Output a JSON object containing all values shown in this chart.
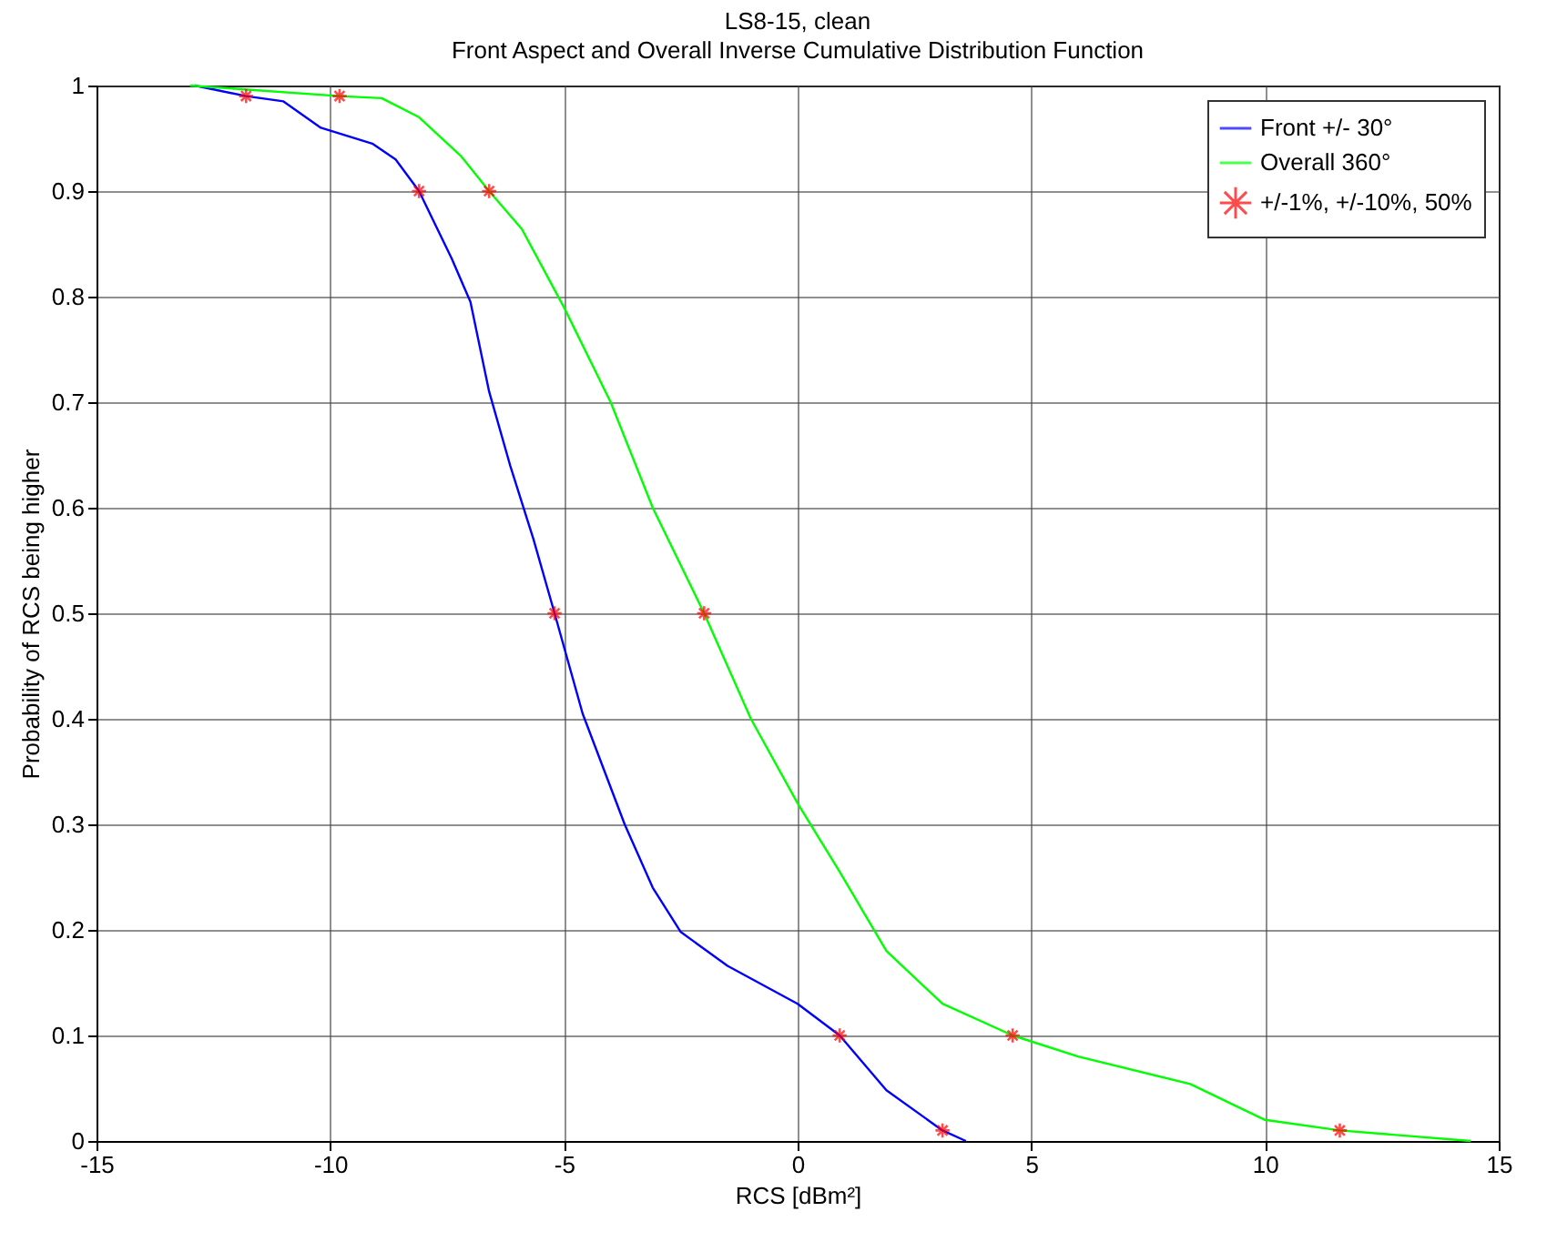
{
  "chart_data": {
    "type": "line",
    "title": "LS8-15, clean",
    "subtitle": "Front Aspect and Overall Inverse Cumulative Distribution Function",
    "xlabel": "RCS [dBm²]",
    "ylabel": "Probability of RCS being higher",
    "xlim": [
      -15,
      15
    ],
    "xticks": [
      -15,
      -10,
      -5,
      0,
      5,
      10,
      15
    ],
    "ylim": [
      0,
      1
    ],
    "yticks": [
      0,
      0.1,
      0.2,
      0.3,
      0.4,
      0.5,
      0.6,
      0.7,
      0.8,
      0.9,
      1
    ],
    "grid": true,
    "legend": "top right",
    "line_style": "solid",
    "series": [
      {
        "name": "Front +/- 30°",
        "color": "#0000ff",
        "x": [
          -12.9,
          -11.8,
          -11.0,
          -10.2,
          -9.1,
          -8.6,
          -8.1,
          -7.4,
          -7.0,
          -6.6,
          -6.15,
          -5.65,
          -5.2,
          -4.6,
          -3.7,
          -3.1,
          -2.5,
          -1.5,
          0,
          0.9,
          1.9,
          3.1,
          3.6
        ],
        "values": [
          1,
          0.99,
          0.985,
          0.96,
          0.945,
          0.93,
          0.9,
          0.836,
          0.795,
          0.71,
          0.64,
          0.57,
          0.5,
          0.405,
          0.3,
          0.24,
          0.198,
          0.166,
          0.13,
          0.1,
          0.048,
          0.01,
          0
        ]
      },
      {
        "name": "Overall 360°",
        "color": "#00ff00",
        "x": [
          -13.0,
          -9.8,
          -8.9,
          -8.1,
          -7.2,
          -6.6,
          -5.9,
          -5.0,
          -4.0,
          -3.1,
          -2.0,
          -1.0,
          0,
          0.9,
          1.9,
          3.1,
          4.6,
          6.0,
          8.4,
          10.0,
          11.6,
          14.4
        ],
        "values": [
          1,
          0.99,
          0.988,
          0.97,
          0.933,
          0.9,
          0.864,
          0.79,
          0.7,
          0.6,
          0.5,
          0.4,
          0.32,
          0.255,
          0.18,
          0.13,
          0.1,
          0.08,
          0.054,
          0.02,
          0.01,
          0
        ]
      },
      {
        "name": "+/-1%, +/-10%, 50%",
        "type": "scatter",
        "marker": "cross",
        "color": "#ff0000",
        "x": [
          -11.8,
          -8.1,
          -5.2,
          0.9,
          3.1,
          -9.8,
          -6.6,
          -2.0,
          4.6,
          11.6
        ],
        "values": [
          0.99,
          0.9,
          0.5,
          0.1,
          0.01,
          0.99,
          0.9,
          0.5,
          0.1,
          0.01
        ]
      }
    ]
  }
}
